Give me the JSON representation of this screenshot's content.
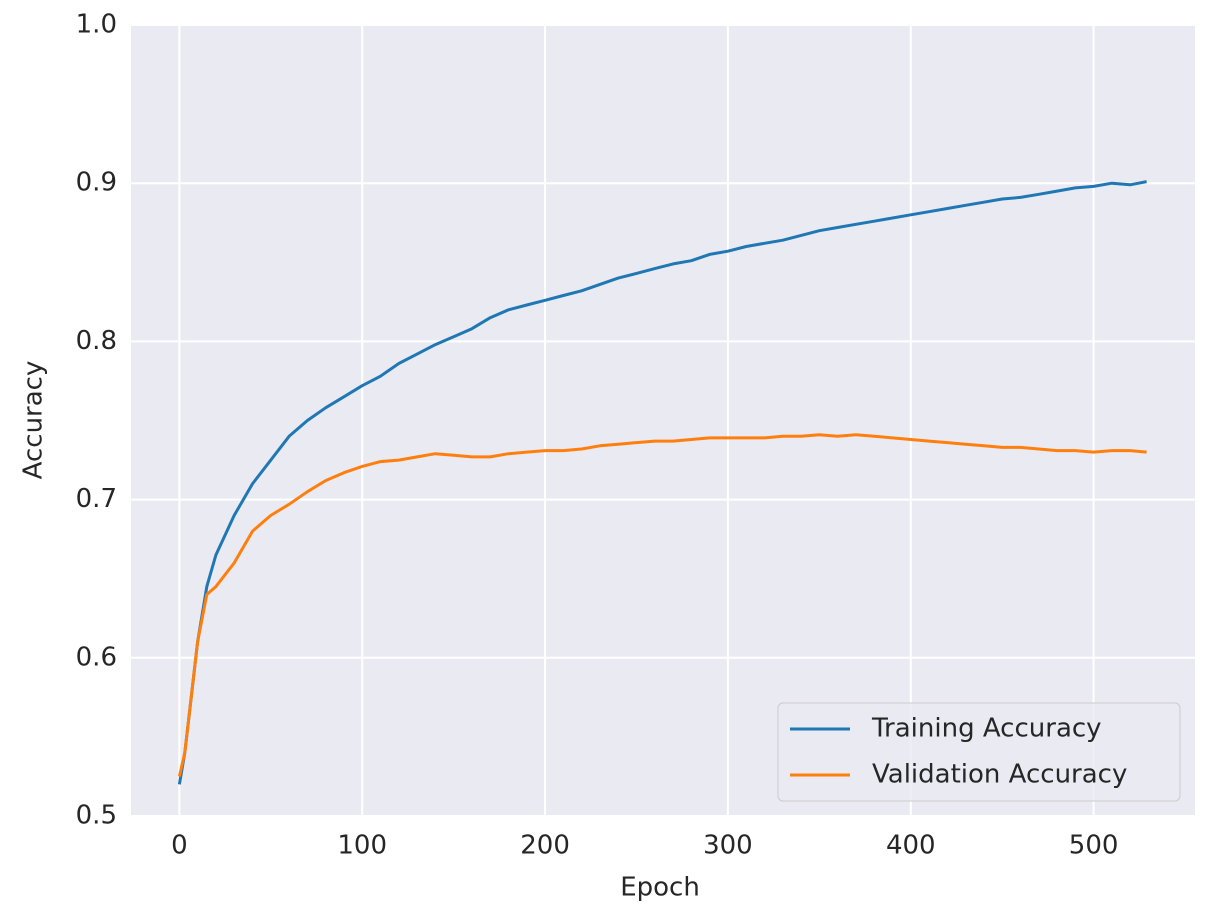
{
  "chart_data": {
    "type": "line",
    "x_label": "Epoch",
    "y_label": "Accuracy",
    "x": [
      0,
      3,
      6,
      10,
      15,
      20,
      30,
      40,
      50,
      60,
      70,
      80,
      90,
      100,
      110,
      120,
      130,
      140,
      150,
      160,
      170,
      180,
      190,
      200,
      210,
      220,
      230,
      240,
      250,
      260,
      270,
      280,
      290,
      300,
      310,
      320,
      330,
      340,
      350,
      360,
      370,
      380,
      390,
      400,
      410,
      420,
      430,
      440,
      450,
      460,
      470,
      480,
      490,
      500,
      510,
      520,
      529
    ],
    "series": [
      {
        "name": "Training Accuracy",
        "color": "#1f77b4",
        "values": [
          0.52,
          0.54,
          0.57,
          0.61,
          0.645,
          0.665,
          0.69,
          0.71,
          0.725,
          0.74,
          0.75,
          0.758,
          0.765,
          0.772,
          0.778,
          0.786,
          0.792,
          0.798,
          0.803,
          0.808,
          0.815,
          0.82,
          0.823,
          0.826,
          0.829,
          0.832,
          0.836,
          0.84,
          0.843,
          0.846,
          0.849,
          0.851,
          0.855,
          0.857,
          0.86,
          0.862,
          0.864,
          0.867,
          0.87,
          0.872,
          0.874,
          0.876,
          0.878,
          0.88,
          0.882,
          0.884,
          0.886,
          0.888,
          0.89,
          0.891,
          0.893,
          0.895,
          0.897,
          0.898,
          0.9,
          0.899,
          0.901
        ]
      },
      {
        "name": "Validation Accuracy",
        "color": "#ff7f0e",
        "values": [
          0.525,
          0.54,
          0.57,
          0.61,
          0.64,
          0.645,
          0.66,
          0.68,
          0.69,
          0.697,
          0.705,
          0.712,
          0.717,
          0.721,
          0.724,
          0.725,
          0.727,
          0.729,
          0.728,
          0.727,
          0.727,
          0.729,
          0.73,
          0.731,
          0.731,
          0.732,
          0.734,
          0.735,
          0.736,
          0.737,
          0.737,
          0.738,
          0.739,
          0.739,
          0.739,
          0.739,
          0.74,
          0.74,
          0.741,
          0.74,
          0.741,
          0.74,
          0.739,
          0.738,
          0.737,
          0.736,
          0.735,
          0.734,
          0.733,
          0.733,
          0.732,
          0.731,
          0.731,
          0.73,
          0.731,
          0.731,
          0.73
        ]
      }
    ],
    "xlim": [
      -26.45,
      555.45
    ],
    "ylim": [
      0.5,
      1
    ],
    "xticks": [
      0,
      100,
      200,
      300,
      400,
      500
    ],
    "yticks": [
      0.5,
      0.6,
      0.7,
      0.8,
      0.9,
      {
        "value": 1,
        "label": "1.0"
      }
    ],
    "grid": true,
    "legend": "lower right"
  }
}
